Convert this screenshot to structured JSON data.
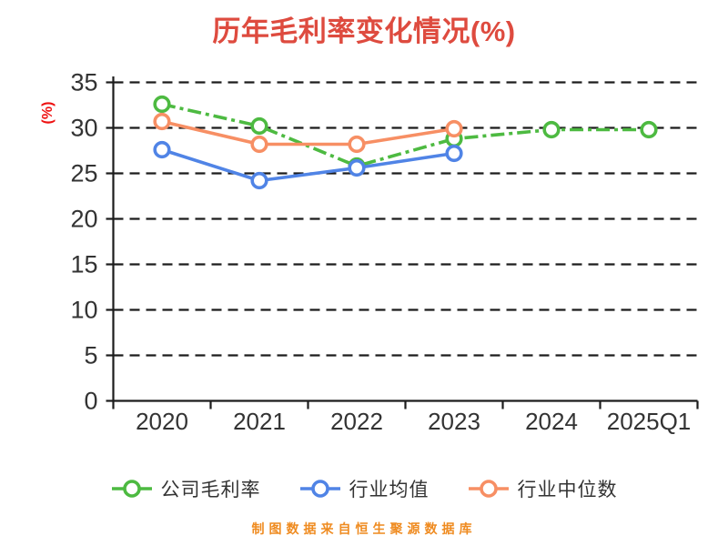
{
  "chart_data": {
    "type": "line",
    "title": "历年毛利率变化情况(%)",
    "ylabel": "(%)",
    "footer": "制图数据来自恒生聚源数据库",
    "categories": [
      "2020",
      "2021",
      "2022",
      "2023",
      "2024",
      "2025Q1"
    ],
    "ylim": [
      0,
      35
    ],
    "ytick_step": 5,
    "grid": "horizontal-dashed",
    "legend_position": "bottom-center",
    "series": [
      {
        "name": "公司毛利率",
        "color": "#4DBA41",
        "line_style": "dashdot",
        "values": [
          32.6,
          30.2,
          25.8,
          28.8,
          29.8,
          29.8
        ]
      },
      {
        "name": "行业均值",
        "color": "#5084E6",
        "line_style": "solid",
        "values": [
          27.6,
          24.2,
          25.6,
          27.2,
          null,
          null
        ]
      },
      {
        "name": "行业中位数",
        "color": "#F78F64",
        "line_style": "solid",
        "values": [
          30.7,
          28.2,
          28.2,
          29.9,
          null,
          null
        ]
      }
    ],
    "colors": {
      "title": "#DE4B3F",
      "ylabel": "#EE1111",
      "tick_text": "#333333",
      "axis": "#1C1C1C",
      "footer": "#EF8B20",
      "marker_fill": "#FFFFFF"
    }
  }
}
